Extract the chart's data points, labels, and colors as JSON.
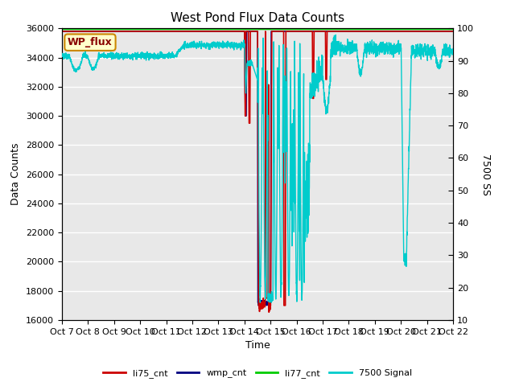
{
  "title": "West Pond Flux Data Counts",
  "xlabel": "Time",
  "ylabel_left": "Data Counts",
  "ylabel_right": "7500 SS",
  "ylim_left": [
    16000,
    36000
  ],
  "ylim_right": [
    10,
    100
  ],
  "yticks_left": [
    16000,
    18000,
    20000,
    22000,
    24000,
    26000,
    28000,
    30000,
    32000,
    34000,
    36000
  ],
  "yticks_right": [
    10,
    20,
    30,
    40,
    50,
    60,
    70,
    80,
    90,
    100
  ],
  "xtick_labels": [
    "Oct 7",
    "Oct 8",
    "Oct 9",
    "Oct 10",
    "Oct 11",
    "Oct 12",
    "Oct 13",
    "Oct 14",
    "Oct 15",
    "Oct 16",
    "Oct 17",
    "Oct 18",
    "Oct 19",
    "Oct 20",
    "Oct 21",
    "Oct 22"
  ],
  "background_color": "#e8e8e8",
  "legend_labels": [
    "li75_cnt",
    "wmp_cnt",
    "li77_cnt",
    "7500 Signal"
  ],
  "legend_colors": [
    "#cc0000",
    "#000080",
    "#00cc00",
    "#00cccc"
  ],
  "wp_flux_label": "WP_flux",
  "wp_flux_bg": "#ffffcc",
  "wp_flux_border": "#cc8800",
  "title_fontsize": 11,
  "axis_fontsize": 9,
  "tick_fontsize": 8
}
